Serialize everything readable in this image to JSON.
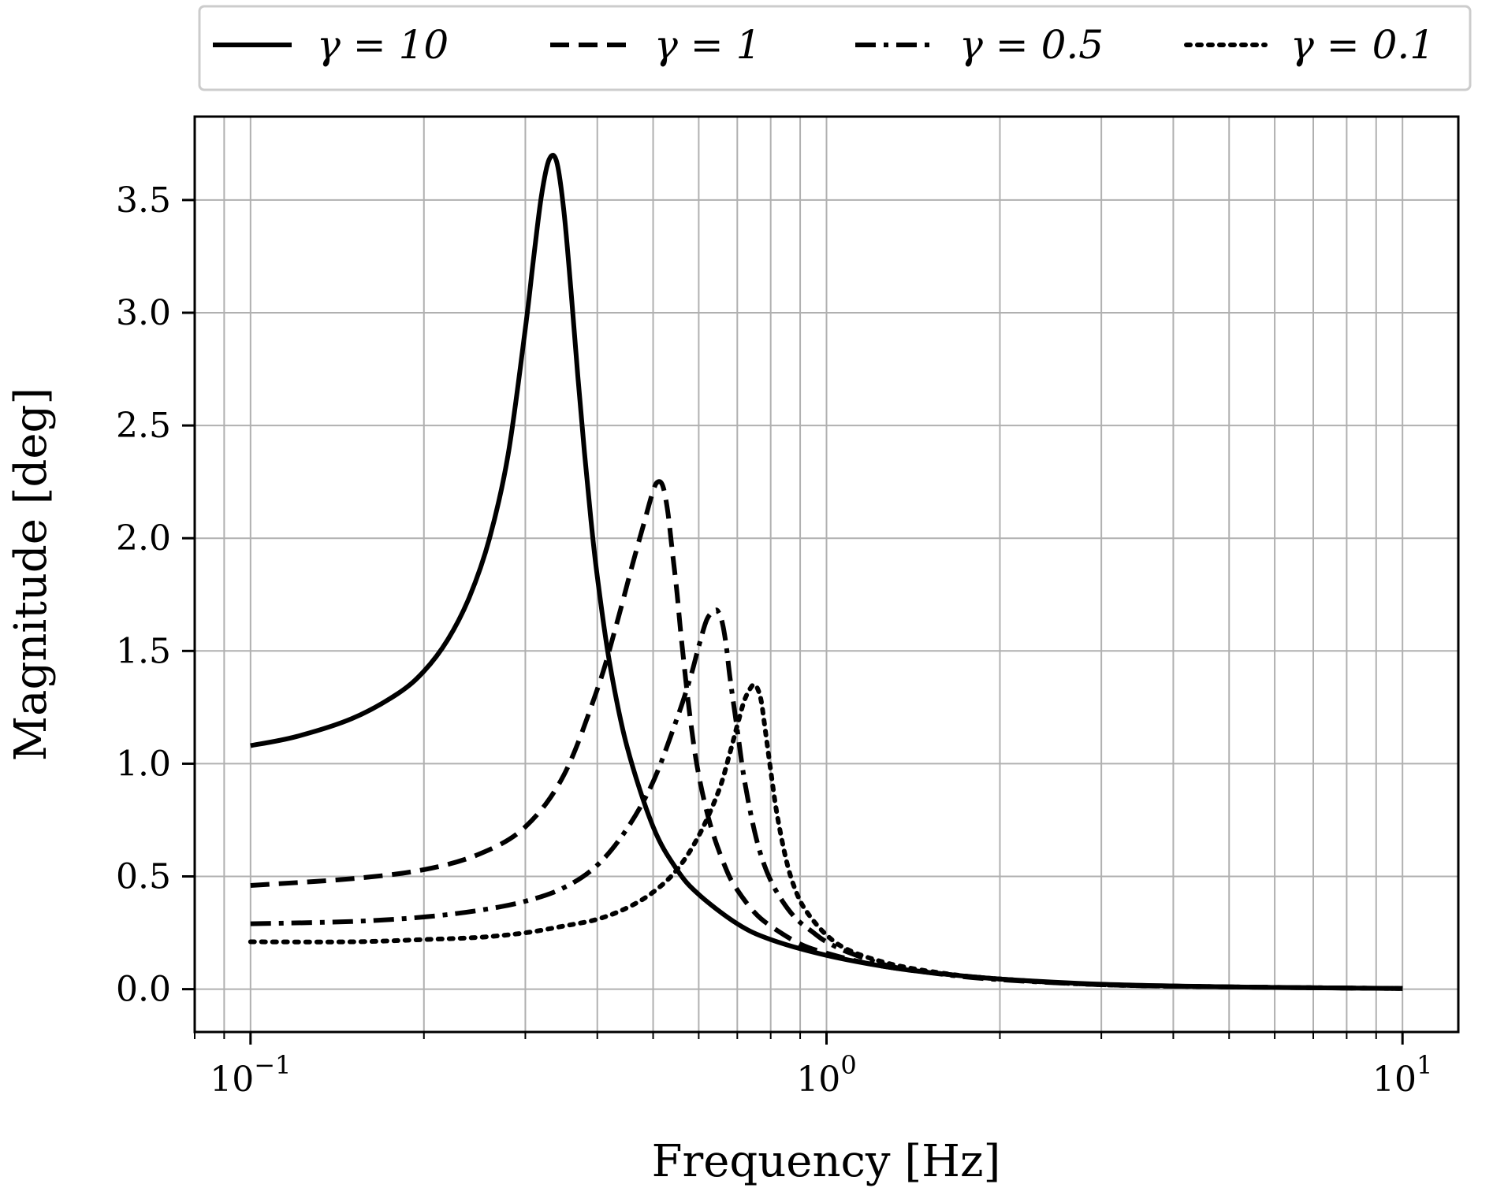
{
  "chart_data": {
    "type": "line",
    "xscale": "log",
    "xlim": [
      0.08,
      12.5
    ],
    "ylim": [
      -0.19,
      3.87
    ],
    "grid": true,
    "legend_position": "top",
    "xlabel": "Frequency [Hz]",
    "ylabel": "Magnitude [deg]",
    "x_ticks": [
      {
        "value": 0.1,
        "base": "10",
        "exp": "−1"
      },
      {
        "value": 1,
        "base": "10",
        "exp": "0"
      },
      {
        "value": 10,
        "base": "10",
        "exp": "1"
      }
    ],
    "y_ticks": [
      {
        "value": 0.0,
        "label": "0.0"
      },
      {
        "value": 0.5,
        "label": "0.5"
      },
      {
        "value": 1.0,
        "label": "1.0"
      },
      {
        "value": 1.5,
        "label": "1.5"
      },
      {
        "value": 2.0,
        "label": "2.0"
      },
      {
        "value": 2.5,
        "label": "2.5"
      },
      {
        "value": 3.0,
        "label": "3.0"
      },
      {
        "value": 3.5,
        "label": "3.5"
      }
    ],
    "series": [
      {
        "name": "γ = 10",
        "style": "solid",
        "color": "#000000",
        "x": [
          0.1,
          0.12,
          0.15,
          0.18,
          0.2,
          0.22,
          0.24,
          0.26,
          0.28,
          0.3,
          0.31,
          0.32,
          0.33,
          0.34,
          0.35,
          0.36,
          0.37,
          0.38,
          0.39,
          0.4,
          0.42,
          0.45,
          0.5,
          0.55,
          0.6,
          0.7,
          0.8,
          1.0,
          1.3,
          1.6,
          2.0,
          3.0,
          5.0,
          7.0,
          10.0
        ],
        "y": [
          1.08,
          1.12,
          1.2,
          1.31,
          1.41,
          1.55,
          1.74,
          2.0,
          2.37,
          2.93,
          3.24,
          3.52,
          3.68,
          3.67,
          3.45,
          3.1,
          2.72,
          2.38,
          2.08,
          1.83,
          1.45,
          1.08,
          0.72,
          0.53,
          0.42,
          0.29,
          0.22,
          0.15,
          0.095,
          0.067,
          0.045,
          0.022,
          0.01,
          0.006,
          0.003
        ]
      },
      {
        "name": "γ = 1",
        "style": "dashed",
        "color": "#000000",
        "x": [
          0.1,
          0.15,
          0.2,
          0.25,
          0.3,
          0.35,
          0.4,
          0.43,
          0.46,
          0.48,
          0.5,
          0.51,
          0.52,
          0.53,
          0.54,
          0.55,
          0.56,
          0.58,
          0.6,
          0.63,
          0.67,
          0.7,
          0.75,
          0.8,
          0.9,
          1.0,
          1.2,
          1.5,
          2.0,
          3.0,
          5.0,
          10.0
        ],
        "y": [
          0.46,
          0.49,
          0.53,
          0.6,
          0.72,
          0.95,
          1.33,
          1.6,
          1.88,
          2.05,
          2.21,
          2.25,
          2.23,
          2.12,
          1.94,
          1.76,
          1.55,
          1.2,
          0.95,
          0.72,
          0.53,
          0.44,
          0.34,
          0.28,
          0.2,
          0.16,
          0.11,
          0.075,
          0.045,
          0.02,
          0.01,
          0.003
        ]
      },
      {
        "name": "γ = 0.5",
        "style": "dashdot",
        "color": "#000000",
        "x": [
          0.1,
          0.15,
          0.2,
          0.25,
          0.3,
          0.35,
          0.4,
          0.45,
          0.5,
          0.55,
          0.58,
          0.6,
          0.62,
          0.64,
          0.65,
          0.66,
          0.67,
          0.68,
          0.7,
          0.72,
          0.75,
          0.78,
          0.82,
          0.88,
          0.95,
          1.0,
          1.1,
          1.3,
          1.6,
          2.0,
          3.0,
          5.0,
          10.0
        ],
        "y": [
          0.29,
          0.3,
          0.32,
          0.35,
          0.39,
          0.45,
          0.55,
          0.71,
          0.92,
          1.2,
          1.38,
          1.52,
          1.64,
          1.68,
          1.67,
          1.62,
          1.52,
          1.38,
          1.15,
          0.93,
          0.7,
          0.55,
          0.43,
          0.32,
          0.25,
          0.21,
          0.16,
          0.1,
          0.065,
          0.042,
          0.02,
          0.01,
          0.003
        ]
      },
      {
        "name": "γ = 0.1",
        "style": "dotted",
        "color": "#000000",
        "x": [
          0.1,
          0.15,
          0.2,
          0.25,
          0.3,
          0.35,
          0.4,
          0.45,
          0.5,
          0.55,
          0.6,
          0.65,
          0.68,
          0.7,
          0.72,
          0.74,
          0.75,
          0.76,
          0.77,
          0.78,
          0.8,
          0.82,
          0.85,
          0.88,
          0.92,
          1.0,
          1.1,
          1.3,
          1.6,
          2.0,
          3.0,
          5.0,
          10.0
        ],
        "y": [
          0.21,
          0.21,
          0.22,
          0.23,
          0.25,
          0.28,
          0.31,
          0.36,
          0.43,
          0.53,
          0.68,
          0.88,
          1.05,
          1.17,
          1.28,
          1.34,
          1.35,
          1.33,
          1.28,
          1.18,
          0.97,
          0.78,
          0.58,
          0.45,
          0.35,
          0.24,
          0.17,
          0.11,
          0.07,
          0.045,
          0.02,
          0.01,
          0.003
        ]
      }
    ]
  }
}
